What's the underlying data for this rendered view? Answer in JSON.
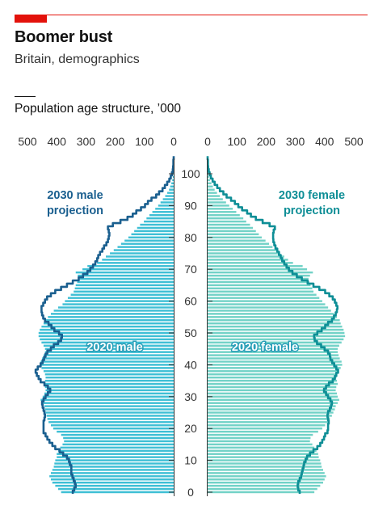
{
  "header": {
    "title": "Boomer bust",
    "subtitle": "Britain, demographics",
    "chart_title": "Population age structure, ’000"
  },
  "colors": {
    "accent": "#e3120b",
    "male_bar": "#3ebfd5",
    "male_line": "#1a5f8f",
    "male_label": "#1a5f8f",
    "female_bar": "#72d2c7",
    "female_line": "#0e8e96",
    "female_label": "#0e8e96",
    "axis": "#333333"
  },
  "chart_data": {
    "type": "bar",
    "orientation": "horizontal-pyramid",
    "ylim": [
      0,
      105
    ],
    "age_ticks": [
      "0",
      "10",
      "20",
      "30",
      "40",
      "50",
      "60",
      "70",
      "80",
      "90",
      "100"
    ],
    "value_ticks_left": [
      "500",
      "400",
      "300",
      "200",
      "100",
      "0"
    ],
    "value_ticks_right": [
      "0",
      "100",
      "200",
      "300",
      "400",
      "500"
    ],
    "xlim": [
      0,
      500
    ],
    "ages": [
      0,
      1,
      2,
      3,
      4,
      5,
      6,
      7,
      8,
      9,
      10,
      11,
      12,
      13,
      14,
      15,
      16,
      17,
      18,
      19,
      20,
      21,
      22,
      23,
      24,
      25,
      26,
      27,
      28,
      29,
      30,
      31,
      32,
      33,
      34,
      35,
      36,
      37,
      38,
      39,
      40,
      41,
      42,
      43,
      44,
      45,
      46,
      47,
      48,
      49,
      50,
      51,
      52,
      53,
      54,
      55,
      56,
      57,
      58,
      59,
      60,
      61,
      62,
      63,
      64,
      65,
      66,
      67,
      68,
      69,
      70,
      71,
      72,
      73,
      74,
      75,
      76,
      77,
      78,
      79,
      80,
      81,
      82,
      83,
      84,
      85,
      86,
      87,
      88,
      89,
      90,
      91,
      92,
      93,
      94,
      95,
      96,
      97,
      98,
      99,
      100,
      101,
      102,
      103,
      104,
      105
    ],
    "series": [
      {
        "name": "2020 male",
        "values": [
          385,
          395,
          405,
          415,
          420,
          425,
          420,
          415,
          410,
          408,
          405,
          400,
          400,
          395,
          388,
          380,
          375,
          378,
          385,
          400,
          412,
          420,
          428,
          432,
          435,
          438,
          440,
          442,
          448,
          455,
          448,
          442,
          438,
          440,
          445,
          440,
          438,
          440,
          445,
          452,
          458,
          455,
          450,
          445,
          440,
          440,
          445,
          452,
          458,
          462,
          462,
          458,
          452,
          445,
          440,
          430,
          420,
          410,
          395,
          380,
          372,
          362,
          352,
          342,
          338,
          335,
          330,
          325,
          328,
          335,
          312,
          295,
          262,
          245,
          232,
          218,
          205,
          192,
          180,
          168,
          155,
          145,
          135,
          125,
          115,
          102,
          93,
          83,
          73,
          63,
          53,
          45,
          37,
          29,
          22,
          16,
          12,
          8,
          5,
          3,
          2,
          1,
          1,
          1,
          1,
          0
        ]
      },
      {
        "name": "2020 female",
        "values": [
          365,
          375,
          385,
          395,
          400,
          405,
          400,
          395,
          390,
          388,
          385,
          380,
          378,
          372,
          365,
          358,
          350,
          352,
          360,
          378,
          392,
          402,
          410,
          418,
          425,
          430,
          435,
          438,
          445,
          450,
          445,
          442,
          438,
          440,
          445,
          442,
          440,
          442,
          448,
          455,
          460,
          458,
          452,
          448,
          445,
          445,
          450,
          458,
          465,
          470,
          468,
          465,
          460,
          455,
          452,
          442,
          432,
          422,
          412,
          402,
          392,
          382,
          372,
          362,
          358,
          352,
          348,
          345,
          350,
          360,
          340,
          325,
          292,
          275,
          262,
          248,
          235,
          222,
          210,
          198,
          185,
          175,
          165,
          155,
          145,
          132,
          122,
          110,
          98,
          86,
          74,
          63,
          52,
          42,
          32,
          24,
          18,
          13,
          8,
          5,
          3,
          2,
          1,
          1,
          1,
          0
        ]
      },
      {
        "name": "2030 male projection",
        "values": [
          345,
          340,
          335,
          338,
          342,
          346,
          350,
          350,
          350,
          355,
          358,
          365,
          378,
          390,
          405,
          415,
          425,
          432,
          438,
          445,
          445,
          445,
          445,
          442,
          440,
          442,
          445,
          448,
          450,
          445,
          438,
          430,
          422,
          430,
          442,
          455,
          462,
          468,
          472,
          465,
          455,
          448,
          443,
          438,
          432,
          420,
          410,
          395,
          385,
          382,
          392,
          408,
          418,
          428,
          440,
          446,
          450,
          452,
          452,
          446,
          440,
          433,
          420,
          405,
          385,
          365,
          345,
          325,
          310,
          295,
          285,
          276,
          268,
          262,
          258,
          252,
          244,
          238,
          230,
          225,
          222,
          220,
          222,
          225,
          208,
          182,
          158,
          140,
          128,
          112,
          98,
          88,
          76,
          60,
          50,
          38,
          30,
          22,
          15,
          10,
          6,
          3,
          2,
          1,
          1,
          0
        ]
      },
      {
        "name": "2030 female projection",
        "values": [
          315,
          310,
          308,
          310,
          315,
          320,
          322,
          325,
          328,
          330,
          335,
          340,
          350,
          362,
          375,
          385,
          392,
          398,
          402,
          410,
          412,
          412,
          414,
          412,
          410,
          412,
          418,
          422,
          425,
          420,
          412,
          405,
          398,
          405,
          415,
          428,
          435,
          440,
          446,
          440,
          433,
          426,
          420,
          418,
          412,
          400,
          388,
          374,
          366,
          364,
          375,
          390,
          402,
          412,
          425,
          432,
          438,
          442,
          444,
          440,
          435,
          428,
          416,
          402,
          382,
          362,
          342,
          322,
          305,
          290,
          278,
          270,
          262,
          255,
          250,
          244,
          238,
          232,
          228,
          225,
          224,
          224,
          226,
          230,
          212,
          188,
          165,
          148,
          135,
          118,
          105,
          93,
          80,
          65,
          54,
          42,
          33,
          24,
          17,
          11,
          7,
          4,
          2,
          1,
          1,
          0
        ]
      }
    ]
  },
  "series_labels": {
    "male_2030": [
      "2030 male",
      "projection"
    ],
    "female_2030": [
      "2030 female",
      "projection"
    ],
    "male_2020": "2020 male",
    "female_2020": "2020 female"
  }
}
